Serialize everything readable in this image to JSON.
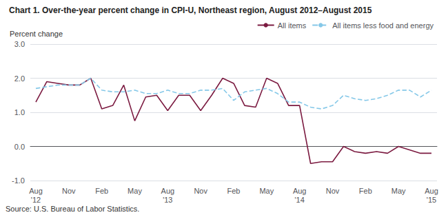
{
  "chart_data": {
    "type": "line",
    "title": "Chart 1. Over-the-year percent change in CPI-U, Northeast region, August 2012–August 2015",
    "ylabel": "Percent change",
    "annotations": [
      "Source: U.S. Bureau of Labor Statistics."
    ],
    "categories": [
      "Aug\n'12",
      null,
      null,
      "Nov",
      null,
      null,
      "Feb",
      null,
      null,
      "May",
      null,
      null,
      "Aug\n'13",
      null,
      null,
      "Nov",
      null,
      null,
      "Feb",
      null,
      null,
      "May",
      null,
      null,
      "Aug\n'14",
      null,
      null,
      "Nov",
      null,
      null,
      "Feb",
      null,
      null,
      "May",
      null,
      null,
      "Aug\n'15"
    ],
    "series": [
      {
        "name": "All items",
        "color": "#7b1a40",
        "line_style": "solid",
        "values": [
          1.3,
          1.9,
          1.85,
          1.8,
          1.8,
          2.0,
          1.1,
          1.2,
          1.8,
          0.75,
          1.45,
          1.5,
          1.05,
          1.5,
          1.5,
          1.05,
          1.5,
          2.0,
          1.85,
          1.2,
          1.15,
          2.0,
          1.85,
          1.2,
          1.2,
          -0.5,
          -0.45,
          -0.45,
          0.0,
          -0.15,
          -0.2,
          -0.15,
          -0.2,
          0.0,
          -0.1,
          -0.2,
          -0.2
        ]
      },
      {
        "name": "All items less food and energy",
        "color": "#85c8e8",
        "line_style": "dashed",
        "values": [
          1.7,
          1.75,
          1.8,
          1.8,
          1.8,
          2.0,
          1.65,
          1.6,
          1.6,
          1.65,
          1.55,
          1.55,
          1.65,
          1.55,
          1.55,
          1.65,
          1.65,
          1.7,
          1.35,
          1.6,
          1.65,
          1.7,
          1.55,
          1.3,
          1.3,
          1.15,
          1.1,
          1.2,
          1.5,
          1.4,
          1.35,
          1.4,
          1.5,
          1.65,
          1.65,
          1.45,
          1.65
        ]
      }
    ],
    "ylim": [
      -1.0,
      3.0
    ],
    "yticks": [
      {
        "value": -1.0,
        "label": "-1.0"
      },
      {
        "value": 0.0,
        "label": "0.0"
      },
      {
        "value": 1.0,
        "label": "1.0"
      },
      {
        "value": 2.0,
        "label": "2.0"
      },
      {
        "value": 3.0,
        "label": "3.0"
      }
    ],
    "grid": true,
    "legend": "top"
  }
}
